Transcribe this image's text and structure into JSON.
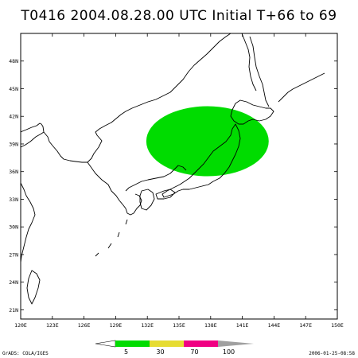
{
  "title": "T0416 2004.08.28.00 UTC Initial T+66 to 69",
  "map": {
    "lon_range": [
      120,
      150
    ],
    "lat_range": [
      20,
      51
    ],
    "lon_ticks": [
      "120E",
      "123E",
      "126E",
      "129E",
      "132E",
      "135E",
      "138E",
      "141E",
      "144E",
      "147E",
      "150E"
    ],
    "lat_ticks": [
      "21N",
      "24N",
      "27N",
      "30N",
      "33N",
      "36N",
      "39N",
      "42N",
      "45N",
      "48N"
    ],
    "probability_area": {
      "color": "#00dc00",
      "center_lon": 137.7,
      "center_lat": 39.3,
      "lon_radius": 5.8,
      "lat_radius": 3.8
    }
  },
  "colorbar": {
    "labels": [
      "5",
      "30",
      "70",
      "100"
    ],
    "colors": [
      "#00dc00",
      "#e6dc32",
      "#f00082",
      "#a0a0a0"
    ]
  },
  "footer": {
    "credit": "GrADS: COLA/IGES",
    "timestamp": "2006-01-25-08:58"
  }
}
